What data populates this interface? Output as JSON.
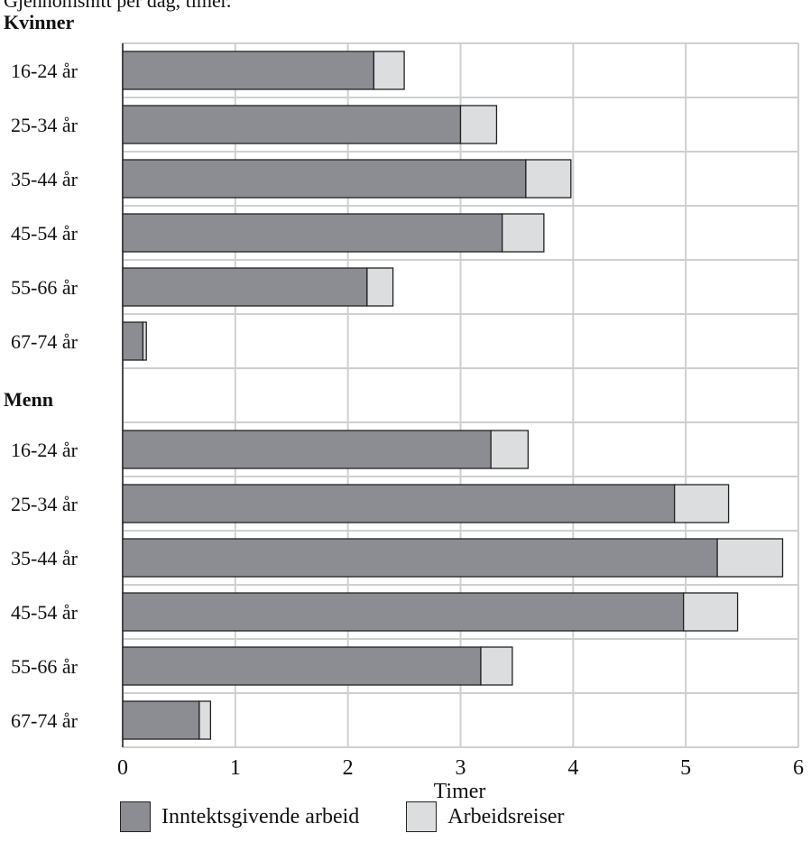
{
  "header": {
    "subtitle": "Gjennomsnitt per dag, timer."
  },
  "colors": {
    "inntekt": "#8c8d92",
    "reiser": "#dcdddf",
    "grid": "#cfcfcf",
    "bar_edge": "#222222",
    "axis": "#222222"
  },
  "chart_data": {
    "type": "bar",
    "orientation": "horizontal",
    "stacked": true,
    "xlabel": "Timer",
    "xlim": [
      0,
      6
    ],
    "xticks": [
      0,
      1,
      2,
      3,
      4,
      5,
      6
    ],
    "grid": true,
    "legend_position": "bottom",
    "groups": [
      {
        "name": "Kvinner",
        "categories": [
          "16-24 år",
          "25-34 år",
          "35-44 år",
          "45-54 år",
          "55-66 år",
          "67-74 år"
        ],
        "series": [
          {
            "name": "Inntektsgivende arbeid",
            "values": [
              2.23,
              3.0,
              3.58,
              3.37,
              2.17,
              0.18
            ]
          },
          {
            "name": "Arbeidsreiser",
            "values": [
              0.27,
              0.32,
              0.4,
              0.37,
              0.23,
              0.03
            ]
          }
        ]
      },
      {
        "name": "Menn",
        "categories": [
          "16-24 år",
          "25-34 år",
          "35-44 år",
          "45-54 år",
          "55-66 år",
          "67-74 år"
        ],
        "series": [
          {
            "name": "Inntektsgivende arbeid",
            "values": [
              3.27,
              4.9,
              5.28,
              4.98,
              3.18,
              0.68
            ]
          },
          {
            "name": "Arbeidsreiser",
            "values": [
              0.33,
              0.48,
              0.58,
              0.48,
              0.28,
              0.1
            ]
          }
        ]
      }
    ]
  }
}
